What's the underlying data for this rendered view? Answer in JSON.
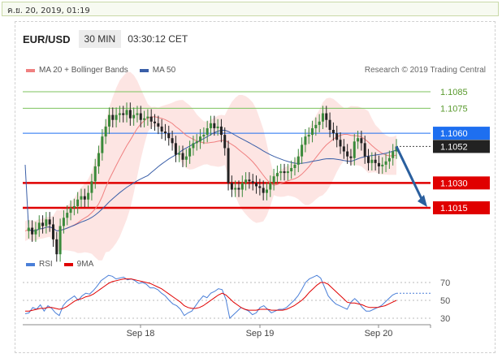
{
  "page": {
    "timestamp": "ค.ย. 20, 2019, 01:19"
  },
  "header": {
    "symbol": "EUR/USD",
    "timeframe": "30 MIN",
    "clock": "03:30:12 CET"
  },
  "legend": {
    "items": [
      {
        "label": "MA 20 + Bollinger Bands",
        "color": "#f08080"
      },
      {
        "label": "MA 50",
        "color": "#3a5fa8"
      }
    ],
    "credit": "Research © 2019 Trading Central"
  },
  "chart_data": [
    {
      "type": "candlestick",
      "title": "EUR/USD",
      "x_tick_labels": [
        "Sep 18",
        "Sep 19",
        "Sep 20"
      ],
      "levels": [
        {
          "value": 1.1085,
          "label": "1.1085",
          "kind": "target",
          "color": "#7cc35e"
        },
        {
          "value": 1.1075,
          "label": "1.1075",
          "kind": "target",
          "color": "#7cc35e"
        },
        {
          "value": 1.106,
          "label": "1.1060",
          "kind": "pivot",
          "color": "#1e6ff0"
        },
        {
          "value": 1.1052,
          "label": "1.1052",
          "kind": "last-price",
          "color": "#222222"
        },
        {
          "value": 1.103,
          "label": "1.1030",
          "kind": "support",
          "color": "#e00000"
        },
        {
          "value": 1.1015,
          "label": "1.1015",
          "kind": "support",
          "color": "#e00000"
        }
      ],
      "price_path": [
        1.1001,
        1.1003,
        1.0999,
        1.1002,
        1.1006,
        1.1004,
        1.1008,
        1.1005,
        1.0996,
        1.0987,
        1.1004,
        1.1009,
        1.1012,
        1.1015,
        1.1016,
        1.102,
        1.1022,
        1.102,
        1.1024,
        1.1031,
        1.104,
        1.1048,
        1.1058,
        1.1064,
        1.1071,
        1.1068,
        1.1071,
        1.1072,
        1.1071,
        1.1074,
        1.1069,
        1.1071,
        1.1072,
        1.1068,
        1.1069,
        1.107,
        1.1067,
        1.1066,
        1.1064,
        1.1061,
        1.106,
        1.1057,
        1.1054,
        1.1047,
        1.1048,
        1.1044,
        1.1046,
        1.1051,
        1.1054,
        1.1055,
        1.1058,
        1.1059,
        1.1063,
        1.1066,
        1.1063,
        1.1064,
        1.1059,
        1.1051,
        1.103,
        1.1026,
        1.1027,
        1.1026,
        1.103,
        1.1032,
        1.1031,
        1.103,
        1.1028,
        1.1027,
        1.1024,
        1.1026,
        1.103,
        1.1034,
        1.1036,
        1.1037,
        1.1036,
        1.1037,
        1.1039,
        1.1041,
        1.1046,
        1.1053,
        1.1058,
        1.1059,
        1.1063,
        1.1065,
        1.1067,
        1.1072,
        1.1068,
        1.1062,
        1.106,
        1.1056,
        1.1052,
        1.1049,
        1.1046,
        1.1045,
        1.1055,
        1.1057,
        1.1054,
        1.1046,
        1.1042,
        1.1044,
        1.1042,
        1.104,
        1.1041,
        1.1043,
        1.1045,
        1.1049,
        1.1052
      ],
      "projection": {
        "from": 1.1052,
        "to": 1.1015,
        "direction": "down"
      },
      "series": [
        {
          "name": "MA 20 + Bollinger Bands",
          "color": "#f08080"
        },
        {
          "name": "MA 50",
          "color": "#3a5fa8"
        }
      ]
    },
    {
      "type": "line",
      "ylim": [
        0,
        100
      ],
      "y_tick_labels": [
        "70",
        "50",
        "30"
      ],
      "reference_levels": [
        70,
        50,
        30
      ],
      "series": [
        {
          "name": "RSI",
          "color": "#4a7fd8",
          "values": [
            35,
            36,
            42,
            40,
            45,
            38,
            44,
            41,
            36,
            33,
            44,
            49,
            52,
            55,
            50,
            55,
            58,
            57,
            61,
            66,
            72,
            75,
            78,
            77,
            74,
            75,
            76,
            73,
            74,
            72,
            69,
            70,
            68,
            64,
            64,
            62,
            58,
            55,
            50,
            46,
            44,
            40,
            33,
            36,
            38,
            44,
            50,
            55,
            53,
            58,
            60,
            63,
            62,
            51,
            30,
            34,
            38,
            42,
            40,
            38,
            34,
            36,
            42,
            44,
            40,
            36,
            38,
            40,
            40,
            42,
            46,
            50,
            55,
            62,
            70,
            74,
            76,
            78,
            75,
            65,
            55,
            50,
            46,
            44,
            42,
            40,
            48,
            52,
            48,
            42,
            38,
            38,
            40,
            42,
            44,
            48,
            52,
            56,
            58
          ]
        },
        {
          "name": "9MA",
          "color": "#e00000",
          "values": [
            38,
            38,
            39,
            40,
            41,
            41,
            42,
            42,
            41,
            40,
            41,
            43,
            46,
            49,
            51,
            52,
            54,
            55,
            57,
            60,
            63,
            66,
            69,
            71,
            72,
            73,
            74,
            74,
            74,
            73,
            72,
            71,
            70,
            69,
            67,
            65,
            63,
            60,
            57,
            54,
            51,
            48,
            44,
            42,
            41,
            41,
            42,
            44,
            47,
            50,
            53,
            56,
            58,
            56,
            52,
            48,
            45,
            42,
            40,
            39,
            39,
            39,
            40,
            40,
            40,
            39,
            39,
            39,
            39,
            40,
            42,
            44,
            47,
            50,
            54,
            59,
            63,
            67,
            70,
            70,
            68,
            64,
            60,
            56,
            52,
            48,
            47,
            47,
            46,
            45,
            43,
            42,
            42,
            42,
            43,
            44,
            46,
            48,
            50
          ]
        }
      ]
    }
  ],
  "rsi_legend": {
    "rsi": "RSI",
    "ma": "9MA"
  }
}
